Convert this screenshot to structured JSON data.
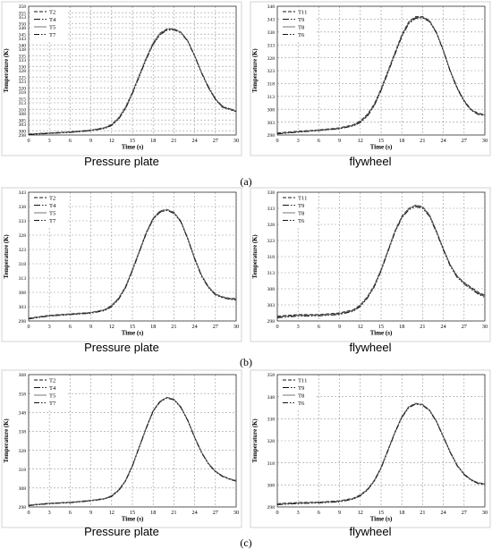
{
  "figure": {
    "row_labels": [
      "(a)",
      "(b)",
      "(c)"
    ]
  },
  "chart_data": [
    {
      "id": "a-pressure-plate",
      "type": "line",
      "caption": "Pressure plate",
      "xlabel": "Time (s)",
      "ylabel": "Temperature (K)",
      "xlim": [
        0,
        30
      ],
      "ylim": [
        298,
        358
      ],
      "xticks": [
        0,
        3,
        6,
        9,
        12,
        15,
        18,
        21,
        24,
        27,
        30
      ],
      "yticks": [
        298,
        300,
        303,
        305,
        308,
        310,
        313,
        315,
        318,
        320,
        323,
        325,
        328,
        330,
        333,
        335,
        338,
        340,
        343,
        345,
        348,
        350,
        353,
        355,
        358
      ],
      "x": [
        0,
        3,
        6,
        9,
        11,
        12,
        13,
        14,
        15,
        16,
        17,
        18,
        19,
        20,
        21,
        22,
        23,
        24,
        25,
        26,
        27,
        28,
        29,
        30
      ],
      "series": [
        {
          "name": "T2",
          "dash": "4,2",
          "values": [
            298.5,
            299,
            299.5,
            300.3,
            301.5,
            303,
            306,
            311,
            318,
            326,
            334,
            341,
            345.5,
            347.5,
            347.5,
            346,
            342,
            335,
            327,
            320,
            314.5,
            311,
            310,
            309
          ]
        },
        {
          "name": "T4",
          "dash": "7,2,1.5,2",
          "values": [
            298.3,
            298.8,
            299.3,
            300,
            301.2,
            302.6,
            305.6,
            310.5,
            317.5,
            325.5,
            333.5,
            340.5,
            345,
            347,
            347.2,
            345.8,
            341.8,
            335,
            327.2,
            320.5,
            315,
            311.5,
            310.3,
            309.3
          ]
        },
        {
          "name": "T5",
          "dash": "",
          "values": [
            298.4,
            298.9,
            299.4,
            300.2,
            301.4,
            302.8,
            305.8,
            310.8,
            317.8,
            325.8,
            333.8,
            340.8,
            345.3,
            347.3,
            347.3,
            345.9,
            341.9,
            334.9,
            327,
            320.2,
            314.8,
            311.2,
            310.1,
            309.1
          ]
        },
        {
          "name": "T7",
          "dash": "6,2,1.5,2,1.5,2",
          "values": [
            298.2,
            298.7,
            299.2,
            300,
            301,
            302.4,
            305.3,
            310.2,
            317.2,
            325.2,
            333.2,
            340.2,
            344.7,
            346.8,
            347,
            345.6,
            341.6,
            334.7,
            326.8,
            320,
            314.6,
            311,
            309.9,
            308.9
          ]
        }
      ]
    },
    {
      "id": "a-flywheel",
      "type": "line",
      "caption": "flywheel",
      "xlabel": "Time (s)",
      "ylabel": "Temperature (K)",
      "xlim": [
        0,
        30
      ],
      "ylim": [
        298,
        348
      ],
      "xticks": [
        0,
        3,
        6,
        9,
        12,
        15,
        18,
        21,
        24,
        27,
        30
      ],
      "yticks": [
        298,
        303,
        308,
        313,
        318,
        323,
        328,
        333,
        338,
        343,
        348
      ],
      "x": [
        0,
        3,
        6,
        9,
        11,
        12,
        13,
        14,
        15,
        16,
        17,
        18,
        19,
        20,
        21,
        22,
        23,
        24,
        25,
        26,
        27,
        28,
        29,
        30
      ],
      "series": [
        {
          "name": "T11",
          "dash": "4,2",
          "values": [
            298.8,
            299.5,
            300,
            300.8,
            302,
            303.5,
            306,
            310,
            316,
            323,
            330,
            337,
            342,
            344,
            344,
            342.5,
            338,
            331,
            323,
            316.5,
            311.5,
            308,
            306.5,
            306
          ]
        },
        {
          "name": "T9",
          "dash": "7,2,1.5,2",
          "values": [
            298.5,
            299.2,
            299.8,
            300.5,
            301.7,
            303,
            305.5,
            309.5,
            315.5,
            322.5,
            329.5,
            336.5,
            341.5,
            343.5,
            343.7,
            342.2,
            337.8,
            330.8,
            322.8,
            316.2,
            311.2,
            307.8,
            306.2,
            305.7
          ]
        },
        {
          "name": "T8",
          "dash": "",
          "values": [
            298.6,
            299.3,
            299.9,
            300.6,
            301.8,
            303.2,
            305.7,
            309.7,
            315.7,
            322.7,
            329.7,
            336.7,
            341.7,
            343.7,
            343.8,
            342.3,
            337.9,
            330.9,
            322.9,
            316.3,
            311.3,
            307.9,
            306.3,
            305.8
          ]
        },
        {
          "name": "T6",
          "dash": "6,2,1.5,2,1.5,2",
          "values": [
            298.4,
            299.1,
            299.7,
            300.4,
            301.5,
            302.8,
            305.2,
            309.2,
            315.2,
            322.2,
            329.2,
            336.2,
            341.2,
            343.3,
            343.5,
            342,
            337.6,
            330.6,
            322.6,
            316,
            311,
            307.6,
            306,
            305.5
          ]
        }
      ]
    },
    {
      "id": "b-pressure-plate",
      "type": "line",
      "caption": "Pressure plate",
      "xlabel": "Time (s)",
      "ylabel": "Temperature (K)",
      "xlim": [
        0,
        30
      ],
      "ylim": [
        298,
        343
      ],
      "xticks": [
        0,
        3,
        6,
        9,
        12,
        15,
        18,
        21,
        24,
        27,
        30
      ],
      "yticks": [
        298,
        303,
        308,
        313,
        318,
        323,
        328,
        333,
        338,
        343
      ],
      "x": [
        0,
        3,
        6,
        9,
        11,
        12,
        13,
        14,
        15,
        16,
        17,
        18,
        19,
        20,
        21,
        22,
        23,
        24,
        25,
        26,
        27,
        28,
        29,
        30
      ],
      "series": [
        {
          "name": "T2",
          "dash": "4,2",
          "values": [
            299,
            300,
            300.5,
            301,
            302,
            303.5,
            306,
            310,
            316,
            322.5,
            329,
            334,
            336.5,
            337,
            336,
            333,
            327,
            320,
            314,
            310,
            307.5,
            306.5,
            306,
            305.8
          ]
        },
        {
          "name": "T4",
          "dash": "7,2,1.5,2",
          "values": [
            298.8,
            299.8,
            300.3,
            300.8,
            301.8,
            303.2,
            305.7,
            309.7,
            315.7,
            322.2,
            328.7,
            333.7,
            336.2,
            336.8,
            335.8,
            332.8,
            326.8,
            319.8,
            313.8,
            309.8,
            307.3,
            306.3,
            305.8,
            305.5
          ]
        },
        {
          "name": "T5",
          "dash": "",
          "values": [
            298.9,
            299.9,
            300.4,
            300.9,
            301.9,
            303.4,
            305.9,
            309.9,
            315.9,
            322.4,
            328.9,
            333.9,
            336.4,
            336.9,
            335.9,
            332.9,
            326.9,
            319.9,
            313.9,
            309.9,
            307.4,
            306.4,
            305.9,
            305.6
          ]
        },
        {
          "name": "T7",
          "dash": "6,2,1.5,2,1.5,2",
          "values": [
            298.7,
            299.7,
            300.2,
            300.7,
            301.6,
            303,
            305.5,
            309.5,
            315.5,
            322,
            328.5,
            333.5,
            336,
            336.6,
            335.6,
            332.6,
            326.6,
            319.6,
            313.6,
            309.6,
            307.1,
            306.1,
            305.6,
            305.3
          ]
        }
      ]
    },
    {
      "id": "b-flywheel",
      "type": "line",
      "caption": "flywheel",
      "xlabel": "Time (s)",
      "ylabel": "Temperature (K)",
      "xlim": [
        0,
        30
      ],
      "ylim": [
        298,
        338
      ],
      "xticks": [
        0,
        3,
        6,
        9,
        12,
        15,
        18,
        21,
        24,
        27,
        30
      ],
      "yticks": [
        298,
        303,
        308,
        313,
        318,
        323,
        328,
        333,
        338
      ],
      "x": [
        0,
        3,
        6,
        9,
        11,
        12,
        13,
        14,
        15,
        16,
        17,
        18,
        19,
        20,
        21,
        22,
        23,
        24,
        25,
        26,
        27,
        28,
        29,
        30
      ],
      "series": [
        {
          "name": "T11",
          "dash": "4,2",
          "values": [
            299.5,
            300,
            300,
            300.5,
            301.5,
            303,
            305.5,
            309,
            314,
            320,
            326,
            330.5,
            333,
            334,
            333.5,
            331,
            326,
            320.5,
            315.5,
            312,
            310,
            308.5,
            307,
            306
          ]
        },
        {
          "name": "T9",
          "dash": "7,2,1.5,2",
          "values": [
            299.2,
            299.7,
            299.8,
            300.2,
            301.2,
            302.7,
            305.2,
            308.7,
            313.7,
            319.7,
            325.7,
            330.2,
            332.8,
            333.8,
            333.3,
            330.8,
            325.8,
            320.3,
            315.3,
            311.8,
            309.8,
            308.2,
            306.7,
            305.6
          ]
        },
        {
          "name": "T8",
          "dash": "",
          "values": [
            299.3,
            299.8,
            299.9,
            300.3,
            301.3,
            302.8,
            305.3,
            308.8,
            313.8,
            319.8,
            325.8,
            330.3,
            332.9,
            333.9,
            333.4,
            330.9,
            325.9,
            320.4,
            315.4,
            311.9,
            309.9,
            308.3,
            306.8,
            305.8
          ]
        },
        {
          "name": "T6",
          "dash": "6,2,1.5,2,1.5,2",
          "values": [
            299,
            299.5,
            299.6,
            300,
            301,
            302.5,
            305,
            308.5,
            313.5,
            319.5,
            325.5,
            330,
            332.5,
            333.5,
            333,
            330.5,
            325.5,
            320,
            315,
            311.5,
            309.5,
            307.9,
            306.4,
            305.3
          ]
        }
      ]
    },
    {
      "id": "c-pressure-plate",
      "type": "line",
      "caption": "Pressure plate",
      "xlabel": "Time (s)",
      "ylabel": "Temperature (K)",
      "xlim": [
        0,
        30
      ],
      "ylim": [
        298,
        368
      ],
      "xticks": [
        0,
        3,
        6,
        9,
        12,
        15,
        18,
        21,
        24,
        27,
        30
      ],
      "yticks": [
        298,
        308,
        318,
        328,
        338,
        348,
        358,
        368
      ],
      "x": [
        0,
        3,
        6,
        9,
        11,
        12,
        13,
        14,
        15,
        16,
        17,
        18,
        19,
        20,
        21,
        22,
        23,
        24,
        25,
        26,
        27,
        28,
        29,
        30
      ],
      "series": [
        {
          "name": "T2",
          "dash": "4,2",
          "values": [
            299,
            300,
            300.5,
            301.5,
            302.5,
            304,
            307,
            312,
            320,
            330,
            340,
            349,
            354,
            356,
            355,
            351,
            344,
            335,
            327,
            321,
            317,
            314.5,
            313,
            312
          ]
        },
        {
          "name": "T4",
          "dash": "7,2,1.5,2",
          "values": [
            298.8,
            299.8,
            300.3,
            301.3,
            302.3,
            303.7,
            306.7,
            311.7,
            319.7,
            329.7,
            339.7,
            348.7,
            353.7,
            355.8,
            354.8,
            350.8,
            343.8,
            334.8,
            326.8,
            320.8,
            316.8,
            314.3,
            312.8,
            311.8
          ]
        },
        {
          "name": "T5",
          "dash": "",
          "values": [
            298.9,
            299.9,
            300.4,
            301.4,
            302.4,
            303.9,
            306.9,
            311.9,
            319.9,
            329.9,
            339.9,
            348.9,
            353.9,
            355.9,
            354.9,
            350.9,
            343.9,
            334.9,
            326.9,
            320.9,
            316.9,
            314.4,
            312.9,
            311.9
          ]
        },
        {
          "name": "T7",
          "dash": "6,2,1.5,2,1.5,2",
          "values": [
            298.7,
            299.7,
            300.2,
            301.2,
            302.2,
            303.5,
            306.5,
            311.5,
            319.5,
            329.5,
            339.5,
            348.5,
            353.5,
            355.6,
            354.6,
            350.6,
            343.6,
            334.6,
            326.6,
            320.6,
            316.6,
            314.1,
            312.6,
            311.6
          ]
        }
      ]
    },
    {
      "id": "c-flywheel",
      "type": "line",
      "caption": "flywheel",
      "xlabel": "Time (s)",
      "ylabel": "Temperature (K)",
      "xlim": [
        0,
        30
      ],
      "ylim": [
        298,
        358
      ],
      "xticks": [
        0,
        3,
        6,
        9,
        12,
        15,
        18,
        21,
        24,
        27,
        30
      ],
      "yticks": [
        298,
        308,
        318,
        328,
        338,
        348,
        358
      ],
      "x": [
        0,
        3,
        6,
        9,
        11,
        12,
        13,
        14,
        15,
        16,
        17,
        18,
        19,
        20,
        21,
        22,
        23,
        24,
        25,
        26,
        27,
        28,
        29,
        30
      ],
      "series": [
        {
          "name": "T11",
          "dash": "4,2",
          "values": [
            299.5,
            300,
            300.2,
            300.8,
            302,
            303.5,
            306,
            310,
            316,
            324,
            332,
            339,
            343.5,
            345,
            344.5,
            342,
            337,
            330,
            323,
            317,
            313,
            310.5,
            309,
            308.5
          ]
        },
        {
          "name": "T9",
          "dash": "7,2,1.5,2",
          "values": [
            299.2,
            299.7,
            300,
            300.5,
            301.7,
            303.2,
            305.7,
            309.7,
            315.7,
            323.7,
            331.7,
            338.7,
            343.2,
            344.8,
            344.3,
            341.8,
            336.8,
            329.8,
            322.8,
            316.8,
            312.8,
            310.3,
            308.8,
            308.3
          ]
        },
        {
          "name": "T8",
          "dash": "",
          "values": [
            299.3,
            299.8,
            300.1,
            300.6,
            301.8,
            303.3,
            305.8,
            309.8,
            315.8,
            323.8,
            331.8,
            338.8,
            343.3,
            344.9,
            344.4,
            341.9,
            336.9,
            329.9,
            322.9,
            316.9,
            312.9,
            310.4,
            308.9,
            308.4
          ]
        },
        {
          "name": "T6",
          "dash": "6,2,1.5,2,1.5,2",
          "values": [
            299,
            299.5,
            299.8,
            300.3,
            301.5,
            303,
            305.5,
            309.5,
            315.5,
            323.5,
            331.5,
            338.5,
            343,
            344.6,
            344.1,
            341.6,
            336.6,
            329.6,
            322.6,
            316.6,
            312.6,
            310.1,
            308.6,
            308.1
          ]
        }
      ]
    }
  ]
}
